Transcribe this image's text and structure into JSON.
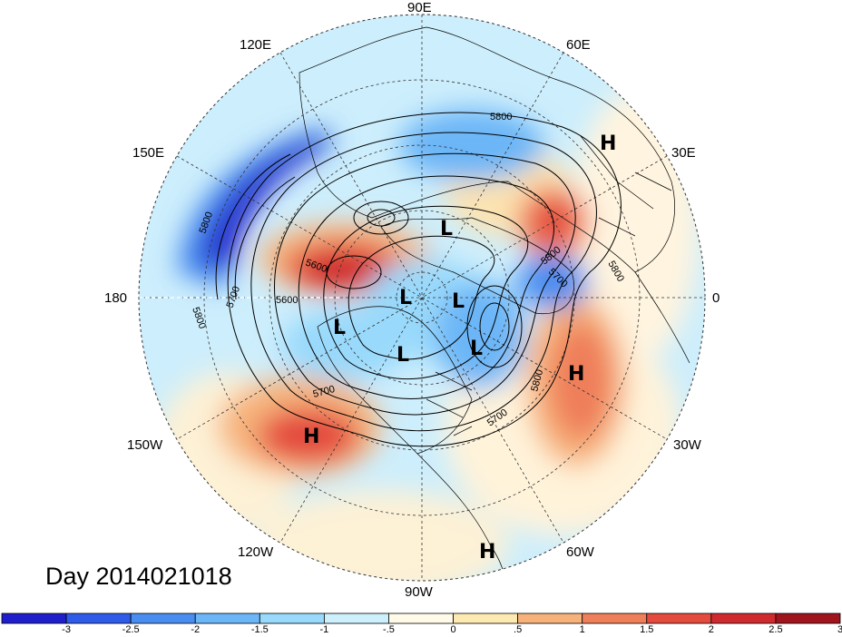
{
  "day_label": "Day 2014021018",
  "longitude_labels": [
    "90E",
    "60E",
    "30E",
    "0",
    "30W",
    "60W",
    "90W",
    "120W",
    "150W",
    "180",
    "150E",
    "120E"
  ],
  "pressure_centers": [
    "H",
    "L",
    "L",
    "L",
    "L",
    "L",
    "L",
    "H",
    "H",
    "H"
  ],
  "contour_labels": [
    "5800",
    "5800",
    "5800",
    "5800",
    "5700",
    "5700",
    "5700",
    "5700",
    "5800",
    "5600",
    "5600",
    "5800"
  ],
  "colorbar": {
    "ticks": [
      "-3",
      "-2.5",
      "-2",
      "-1.5",
      "-1",
      "-.5",
      "0",
      ".5",
      "1",
      "1.5",
      "2",
      "2.5",
      "3"
    ],
    "colors": [
      "#1e1ecc",
      "#2f5bea",
      "#4a8df0",
      "#6cb6f7",
      "#99d9fb",
      "#cdf0fd",
      "#fffbe8",
      "#fde9b2",
      "#f6b27a",
      "#ef7e5a",
      "#e44a3e",
      "#cf2a2e",
      "#a0141e"
    ]
  }
}
